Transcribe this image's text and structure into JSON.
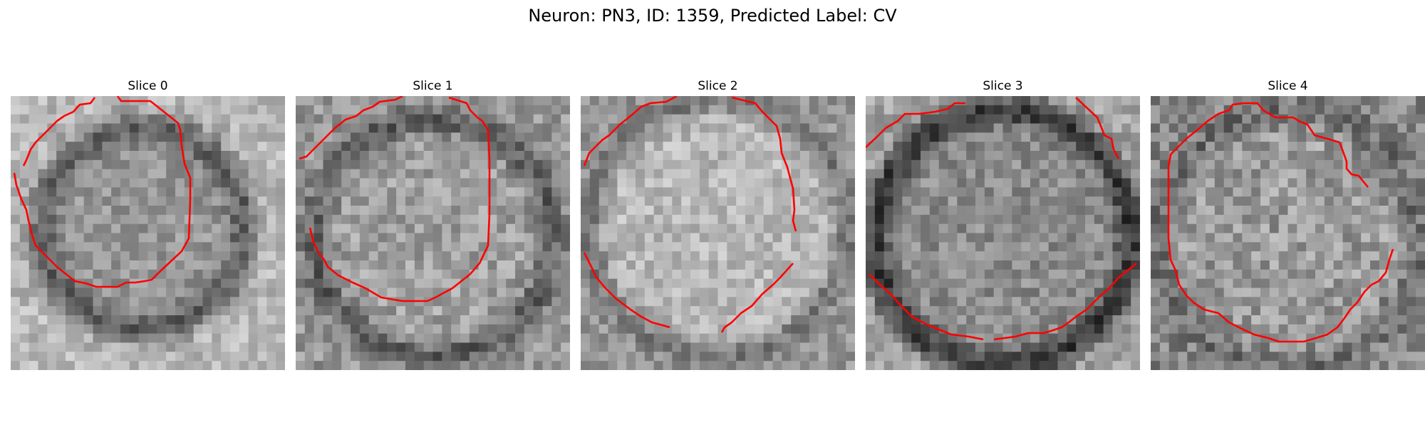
{
  "figure": {
    "title": "Neuron: PN3, ID: 1359, Predicted Label: CV"
  },
  "panels": [
    {
      "title": "Slice 0",
      "description": "grayscale microscopy patch of a cell with a dark ring-shaped membrane and a red segmentation contour"
    },
    {
      "title": "Slice 1",
      "description": "grayscale microscopy patch with a dark cell outline and a red segmentation contour"
    },
    {
      "title": "Slice 2",
      "description": "bright grayscale microscopy patch with a faint dark outline and a red segmentation contour"
    },
    {
      "title": "Slice 3",
      "description": "grayscale microscopy patch with a thick dark cell border and a red segmentation contour"
    },
    {
      "title": "Slice 4",
      "description": "noisy grayscale microscopy patch with a red segmentation contour"
    }
  ],
  "colors": {
    "contour": "#ff0000"
  }
}
